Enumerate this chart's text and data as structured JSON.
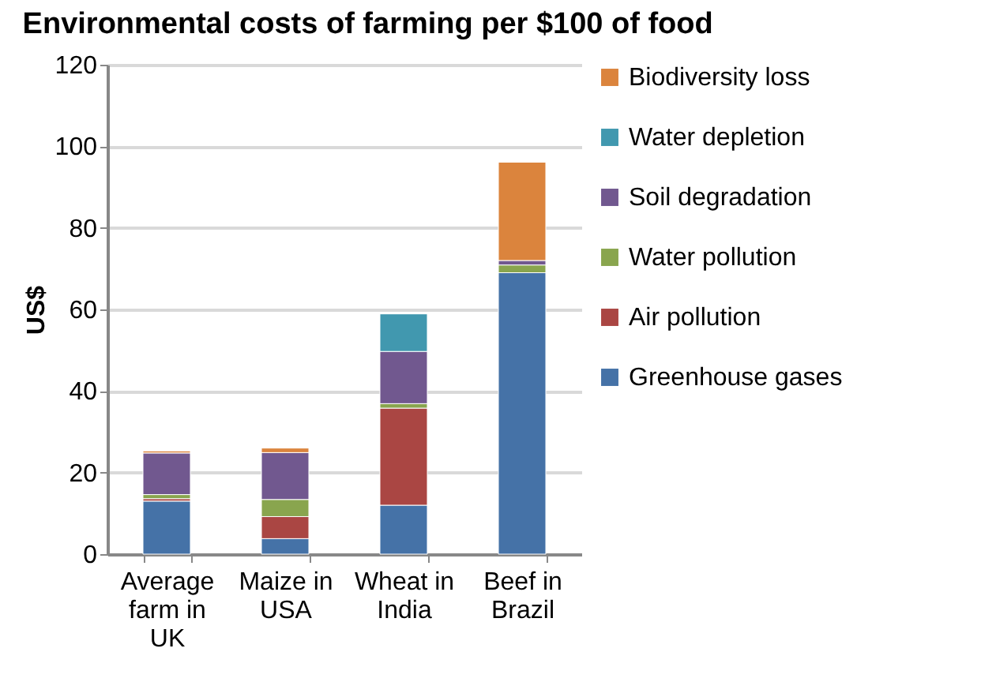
{
  "chart_data": {
    "type": "bar",
    "title": "Environmental costs of farming per $100 of food",
    "ylabel": "US$",
    "categories": [
      "Average farm in UK",
      "Maize in USA",
      "Wheat in India",
      "Beef in Brazil"
    ],
    "stacked": true,
    "ylim": [
      0,
      120
    ],
    "yticks": [
      0,
      20,
      40,
      60,
      80,
      100,
      120
    ],
    "grid": "y",
    "legend": "right",
    "series": [
      {
        "name": "Greenhouse gases",
        "color": "#4572a7",
        "values": [
          13.0,
          3.8,
          12.0,
          69.0
        ]
      },
      {
        "name": "Air pollution",
        "color": "#aa4643",
        "values": [
          0.6,
          5.4,
          23.8,
          null
        ]
      },
      {
        "name": "Water pollution",
        "color": "#89a54e",
        "values": [
          1.0,
          4.2,
          1.1,
          1.9
        ]
      },
      {
        "name": "Soil degradation",
        "color": "#71588f",
        "values": [
          10.2,
          11.5,
          12.8,
          1.1
        ]
      },
      {
        "name": "Water depletion",
        "color": "#4198af",
        "values": [
          null,
          null,
          9.2,
          null
        ]
      },
      {
        "name": "Biodiversity loss",
        "color": "#db843d",
        "values": [
          0.5,
          1.1,
          null,
          24.1
        ]
      }
    ]
  }
}
